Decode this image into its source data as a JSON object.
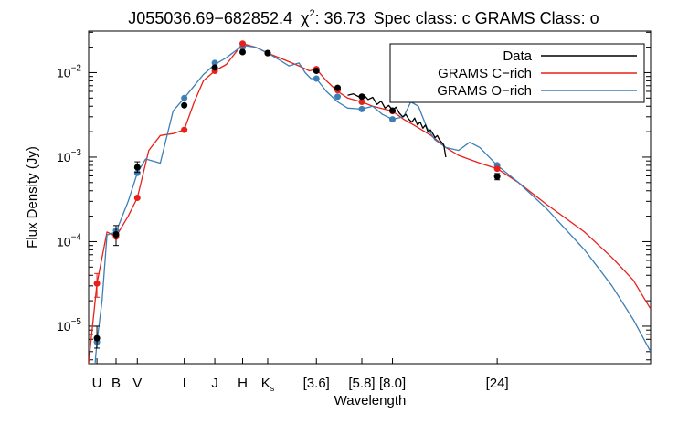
{
  "chart_data": {
    "type": "line",
    "title": {
      "object": "J055036.69−682852.4",
      "chi_symbol": "χ",
      "chi_superscript": "2",
      "chi_value": ": 36.73",
      "rest": "Spec class: c GRAMS Class: o"
    },
    "xlabel": "Wavelength",
    "ylabel": "Flux Density (Jy)",
    "x_scale": "log",
    "y_scale": "log",
    "x_unit_note": "x values in microns; axis shows band names only",
    "xlim": [
      0.33,
      120
    ],
    "ylim": [
      3.6e-06,
      0.031
    ],
    "grid": false,
    "legend_position": "top-right",
    "y_ticks": [
      {
        "value": 1e-05,
        "base": "10",
        "exp": "−5"
      },
      {
        "value": 0.0001,
        "base": "10",
        "exp": "−4"
      },
      {
        "value": 0.001,
        "base": "10",
        "exp": "−3"
      },
      {
        "value": 0.01,
        "base": "10",
        "exp": "−2"
      }
    ],
    "x_band_labels": [
      {
        "text": "U",
        "x": 0.36
      },
      {
        "text": "B",
        "x": 0.44
      },
      {
        "text": "V",
        "x": 0.55
      },
      {
        "text": "I",
        "x": 0.9
      },
      {
        "text": "J",
        "x": 1.24
      },
      {
        "text": "H",
        "x": 1.66
      },
      {
        "text": "K",
        "sub": "s",
        "x": 2.16
      },
      {
        "text": "[3.6]",
        "x": 3.6
      },
      {
        "text": "[5.8]",
        "x": 5.8
      },
      {
        "text": "[8.0]",
        "x": 8.0
      },
      {
        "text": "[24]",
        "x": 24
      }
    ],
    "legend": [
      {
        "label": "Data",
        "color": "#000000"
      },
      {
        "label": "GRAMS C−rich",
        "color": "#e8201a"
      },
      {
        "label": "GRAMS O−rich",
        "color": "#3d7fb5"
      }
    ],
    "series": [
      {
        "name": "GRAMS C−rich",
        "color": "#e8201a",
        "x": [
          0.33,
          0.36,
          0.4,
          0.44,
          0.5,
          0.55,
          0.62,
          0.7,
          0.8,
          0.9,
          1.0,
          1.1,
          1.24,
          1.4,
          1.66,
          1.9,
          2.16,
          2.6,
          3.0,
          3.35,
          3.6,
          4.0,
          4.5,
          5.0,
          5.8,
          6.5,
          8.0,
          9.0,
          10.0,
          12.0,
          14.0,
          16.0,
          20.0,
          24.0,
          30.0,
          40.0,
          60.0,
          80.0,
          100.0,
          120.0
        ],
        "y": [
          3.6e-06,
          3.2e-05,
          0.00013,
          0.000115,
          0.0002,
          0.00033,
          0.0012,
          0.0018,
          0.0019,
          0.0021,
          0.0045,
          0.008,
          0.0105,
          0.0125,
          0.022,
          0.02,
          0.017,
          0.014,
          0.012,
          0.0105,
          0.011,
          0.008,
          0.006,
          0.005,
          0.0045,
          0.004,
          0.0035,
          0.0028,
          0.0024,
          0.0018,
          0.0013,
          0.00105,
          0.00085,
          0.00073,
          0.0005,
          0.00028,
          0.00013,
          6.5e-05,
          3.5e-05,
          1.6e-05
        ]
      },
      {
        "name": "GRAMS O−rich",
        "color": "#3d7fb5",
        "x": [
          0.33,
          0.345,
          0.36,
          0.38,
          0.4,
          0.44,
          0.5,
          0.55,
          0.6,
          0.7,
          0.8,
          0.9,
          1.0,
          1.1,
          1.24,
          1.4,
          1.66,
          1.9,
          2.16,
          2.4,
          2.7,
          3.0,
          3.2,
          3.4,
          3.6,
          4.0,
          4.5,
          5.0,
          5.8,
          6.5,
          7.2,
          8.0,
          9.0,
          9.7,
          10.5,
          11.5,
          12.5,
          14.0,
          16.0,
          18.0,
          20.0,
          24.0,
          30.0,
          40.0,
          60.0,
          80.0,
          100.0,
          120.0
        ],
        "y": [
          3.6e-06,
          1.8e-06,
          6.5e-06,
          2e-05,
          0.00012,
          0.00013,
          0.0003,
          0.00065,
          0.00095,
          0.00085,
          0.0035,
          0.005,
          0.007,
          0.0095,
          0.0125,
          0.015,
          0.021,
          0.02,
          0.017,
          0.0145,
          0.012,
          0.013,
          0.01,
          0.0085,
          0.0085,
          0.006,
          0.0045,
          0.0038,
          0.0037,
          0.004,
          0.0032,
          0.0028,
          0.003,
          0.0045,
          0.004,
          0.0022,
          0.0016,
          0.0013,
          0.0012,
          0.0015,
          0.0013,
          0.0008,
          0.0005,
          0.00025,
          8e-05,
          3e-05,
          1.2e-05,
          5e-06
        ]
      },
      {
        "name": "Data spectrum",
        "color": "#000000",
        "x": [
          5.0,
          5.3,
          5.6,
          5.9,
          6.2,
          6.5,
          6.8,
          7.1,
          7.4,
          7.7,
          8.0,
          8.3,
          8.6,
          8.9,
          9.2,
          9.5,
          9.8,
          10.1,
          10.4,
          10.7,
          11.0,
          11.3,
          11.6,
          11.9,
          12.2,
          12.5,
          12.8,
          13.1,
          13.4,
          13.7,
          14.0
        ],
        "y": [
          0.0054,
          0.0056,
          0.0052,
          0.0055,
          0.0048,
          0.0051,
          0.0042,
          0.0046,
          0.0038,
          0.0041,
          0.0036,
          0.0039,
          0.0033,
          0.003,
          0.0032,
          0.0028,
          0.0026,
          0.0029,
          0.0024,
          0.0026,
          0.0022,
          0.0024,
          0.002,
          0.0021,
          0.0019,
          0.0017,
          0.0018,
          0.0016,
          0.0015,
          0.0014,
          0.001
        ]
      }
    ],
    "photometry": {
      "data": [
        {
          "x": 0.36,
          "y": 7.2e-06,
          "err": [
            5.5e-06,
            1e-05
          ]
        },
        {
          "x": 0.44,
          "y": 0.000122,
          "err": [
            9e-05,
            0.000155
          ]
        },
        {
          "x": 0.55,
          "y": 0.00076,
          "err": [
            0.00066,
            0.00088
          ]
        },
        {
          "x": 0.9,
          "y": 0.0041
        },
        {
          "x": 1.24,
          "y": 0.0115
        },
        {
          "x": 1.66,
          "y": 0.0175
        },
        {
          "x": 2.16,
          "y": 0.017
        },
        {
          "x": 3.6,
          "y": 0.0105
        },
        {
          "x": 4.5,
          "y": 0.0066
        },
        {
          "x": 5.8,
          "y": 0.0052
        },
        {
          "x": 8.0,
          "y": 0.00355
        },
        {
          "x": 24.0,
          "y": 0.00059,
          "err": [
            0.00054,
            0.00064
          ]
        }
      ],
      "c_rich": [
        {
          "x": 0.36,
          "y": 3.2e-05,
          "err": [
            2.2e-05,
            4.2e-05
          ]
        },
        {
          "x": 0.44,
          "y": 0.000115
        },
        {
          "x": 0.55,
          "y": 0.00033
        },
        {
          "x": 0.9,
          "y": 0.0021
        },
        {
          "x": 1.24,
          "y": 0.0105
        },
        {
          "x": 1.66,
          "y": 0.022
        },
        {
          "x": 2.16,
          "y": 0.017
        },
        {
          "x": 3.6,
          "y": 0.011
        },
        {
          "x": 4.5,
          "y": 0.0062
        },
        {
          "x": 5.8,
          "y": 0.0045
        },
        {
          "x": 8.0,
          "y": 0.0035
        },
        {
          "x": 24.0,
          "y": 0.00073
        }
      ],
      "o_rich": [
        {
          "x": 0.36,
          "y": 6.5e-06
        },
        {
          "x": 0.44,
          "y": 0.000135
        },
        {
          "x": 0.55,
          "y": 0.00065
        },
        {
          "x": 0.9,
          "y": 0.005
        },
        {
          "x": 1.24,
          "y": 0.013
        },
        {
          "x": 1.66,
          "y": 0.02
        },
        {
          "x": 2.16,
          "y": 0.017
        },
        {
          "x": 3.6,
          "y": 0.0085
        },
        {
          "x": 4.5,
          "y": 0.0052
        },
        {
          "x": 5.8,
          "y": 0.0037
        },
        {
          "x": 8.0,
          "y": 0.0028
        },
        {
          "x": 24.0,
          "y": 0.0008
        }
      ]
    }
  }
}
